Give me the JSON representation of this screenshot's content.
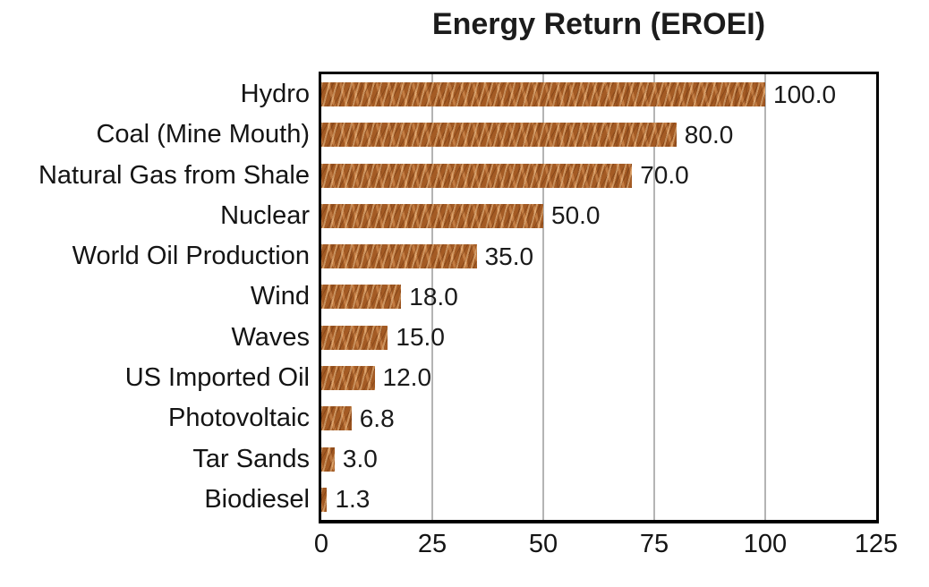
{
  "chart_data": {
    "type": "bar",
    "orientation": "horizontal",
    "title": "Energy Return (EROEI)",
    "categories": [
      "Hydro",
      "Coal (Mine Mouth)",
      "Natural Gas from Shale",
      "Nuclear",
      "World Oil Production",
      "Wind",
      "Waves",
      "US Imported Oil",
      "Photovoltaic",
      "Tar Sands",
      "Biodiesel"
    ],
    "values": [
      100.0,
      80.0,
      70.0,
      50.0,
      35.0,
      18.0,
      15.0,
      12.0,
      6.8,
      3.0,
      1.3
    ],
    "value_labels": [
      "100.0",
      "80.0",
      "70.0",
      "50.0",
      "35.0",
      "18.0",
      "15.0",
      "12.0",
      "6.8",
      "3.0",
      "1.3"
    ],
    "x_ticks": [
      0,
      25,
      50,
      75,
      100,
      125
    ],
    "x_tick_labels": [
      "0",
      "25",
      "50",
      "75",
      "100",
      "125"
    ],
    "xlim": [
      0,
      125
    ],
    "xlabel": "",
    "ylabel": "",
    "grid": true,
    "legend": false,
    "gridline_color": "#b4b4b4",
    "axis_frame_color": "#000000",
    "bar_color": "#a45b24",
    "bar_texture": "scratched-copper",
    "background_color": "#ffffff",
    "text_color": "#1a1a1a"
  }
}
